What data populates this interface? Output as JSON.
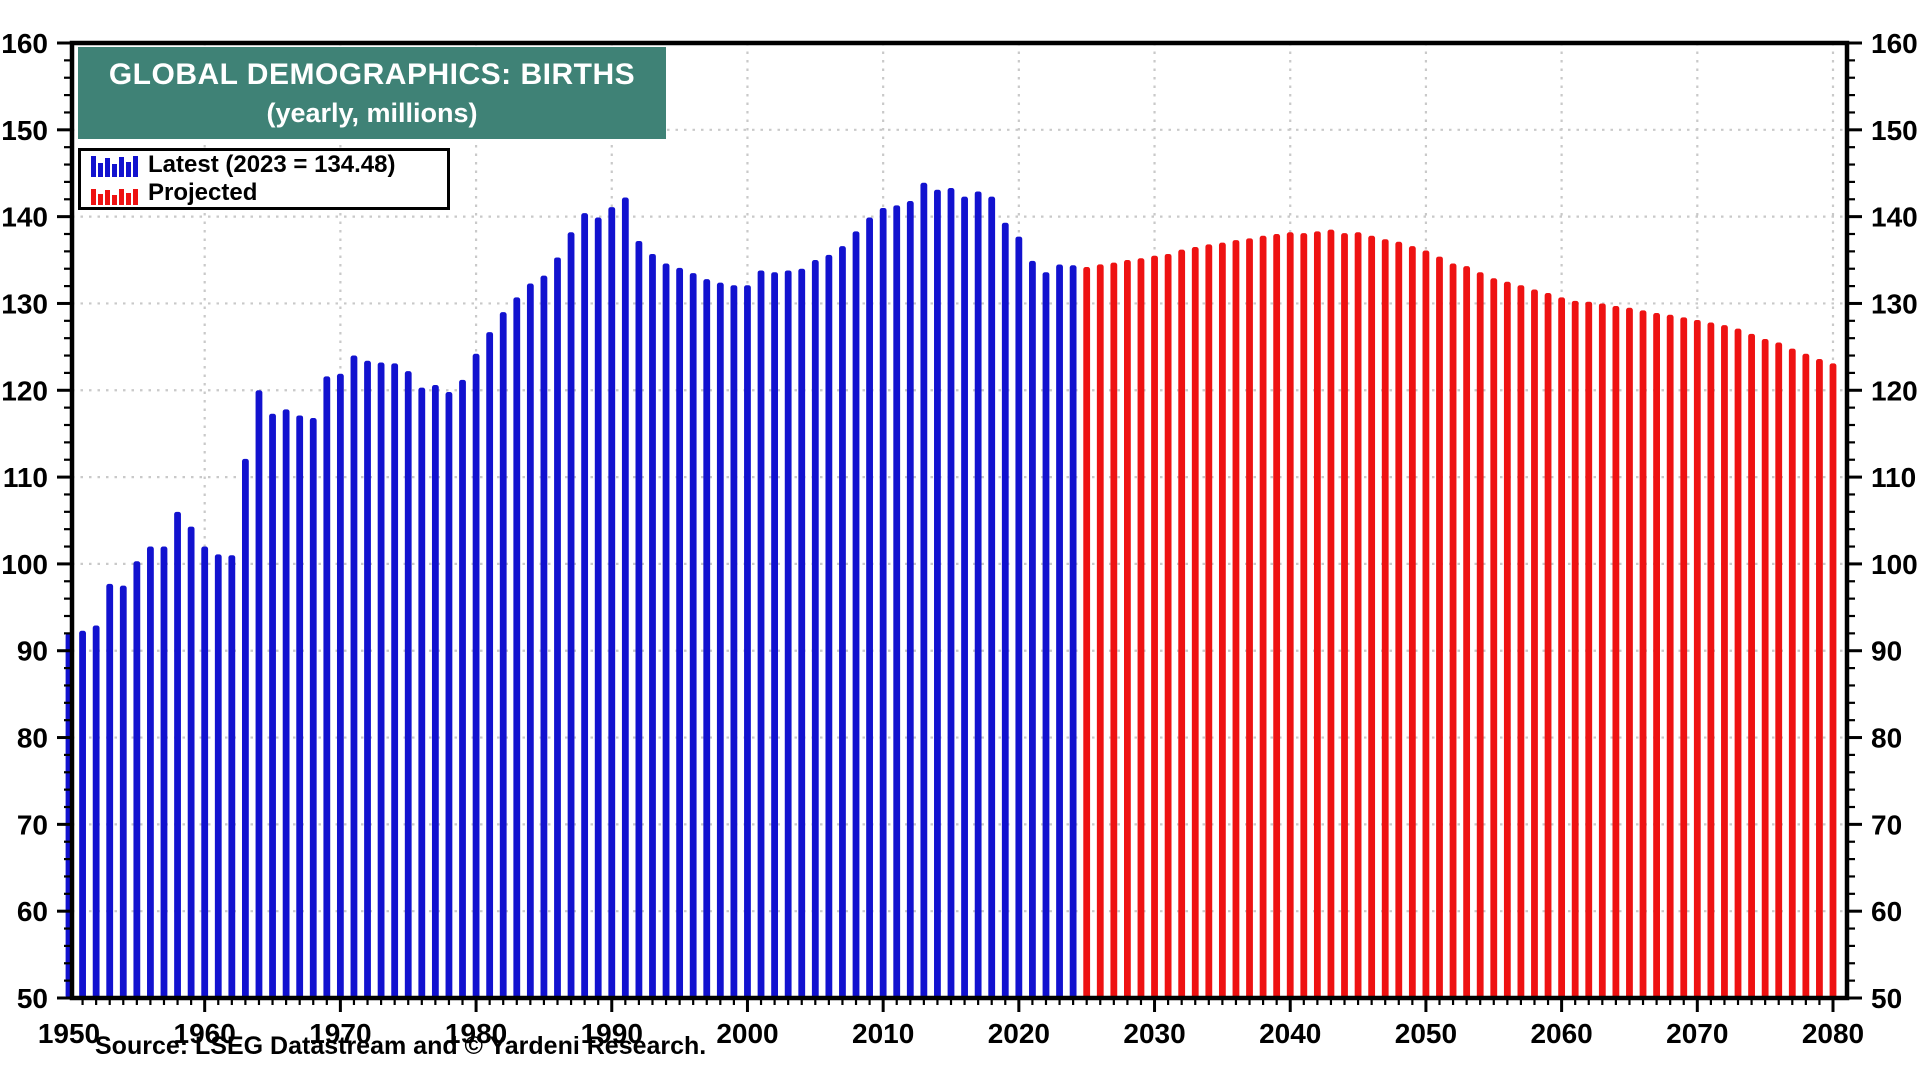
{
  "header": {
    "title": "GLOBAL DEMOGRAPHICS: BIRTHS",
    "subtitle": "(yearly, millions)",
    "title_bg_color": "#3F8276"
  },
  "legend": {
    "items": [
      {
        "label": "Latest (2023 = 134.48)",
        "color": "#1212CF",
        "icon": "mini-bars-blue-icon"
      },
      {
        "label": "Projected",
        "color": "#EE1212",
        "icon": "mini-bars-red-icon"
      }
    ]
  },
  "source": "Source: LSEG Datastream and © Yardeni Research.",
  "chart_data": {
    "type": "bar",
    "title": "GLOBAL DEMOGRAPHICS: BIRTHS (yearly, millions)",
    "xlabel": "",
    "ylabel": "births per year, millions",
    "ylim": [
      50,
      160
    ],
    "xlim": [
      1950,
      2080
    ],
    "y_major_ticks": [
      50,
      60,
      70,
      80,
      90,
      100,
      110,
      120,
      130,
      140,
      150,
      160
    ],
    "y_minor_step": 2,
    "x_major_ticks": [
      1950,
      1960,
      1970,
      1980,
      1990,
      2000,
      2010,
      2020,
      2030,
      2040,
      2050,
      2060,
      2070,
      2080
    ],
    "x_minor_step": 1,
    "grid": "dotted-both-axes",
    "grid_color": "#C9C9C9",
    "legend_position": "top-left",
    "series": [
      {
        "name": "Latest",
        "color": "#1212CF",
        "start_year": 1950,
        "end_year": 2024,
        "values": [
          92.0,
          92.3,
          92.9,
          97.7,
          97.5,
          100.3,
          102.0,
          102.0,
          106.0,
          104.3,
          102.0,
          101.1,
          101.0,
          112.1,
          120.0,
          117.3,
          117.8,
          117.1,
          116.8,
          121.6,
          121.9,
          124.0,
          123.4,
          123.2,
          123.1,
          122.2,
          120.3,
          120.6,
          119.8,
          121.2,
          124.2,
          126.7,
          129.0,
          130.7,
          132.3,
          133.2,
          135.3,
          138.2,
          140.4,
          139.9,
          141.1,
          142.2,
          137.2,
          135.7,
          134.6,
          134.1,
          133.5,
          132.8,
          132.4,
          132.1,
          132.1,
          133.8,
          133.6,
          133.8,
          134.0,
          135.0,
          135.6,
          136.6,
          138.3,
          139.9,
          141.0,
          141.3,
          141.8,
          143.9,
          143.1,
          143.3,
          142.3,
          142.9,
          142.3,
          139.3,
          137.7,
          134.9,
          133.6,
          134.48,
          134.4
        ]
      },
      {
        "name": "Projected",
        "color": "#EE1212",
        "start_year": 2025,
        "end_year": 2080,
        "values": [
          134.2,
          134.5,
          134.7,
          135.0,
          135.2,
          135.5,
          135.7,
          136.2,
          136.5,
          136.8,
          137.0,
          137.3,
          137.5,
          137.8,
          138.0,
          138.2,
          138.1,
          138.3,
          138.5,
          138.1,
          138.2,
          137.8,
          137.4,
          137.1,
          136.6,
          136.1,
          135.4,
          134.6,
          134.3,
          133.6,
          132.9,
          132.5,
          132.1,
          131.6,
          131.2,
          130.7,
          130.3,
          130.2,
          130.0,
          129.7,
          129.5,
          129.2,
          128.9,
          128.7,
          128.4,
          128.1,
          127.8,
          127.5,
          127.1,
          126.5,
          125.9,
          125.5,
          124.8,
          124.2,
          123.6,
          123.1
        ]
      }
    ],
    "annotations": {
      "latest_value_label": "2023 = 134.48"
    }
  }
}
